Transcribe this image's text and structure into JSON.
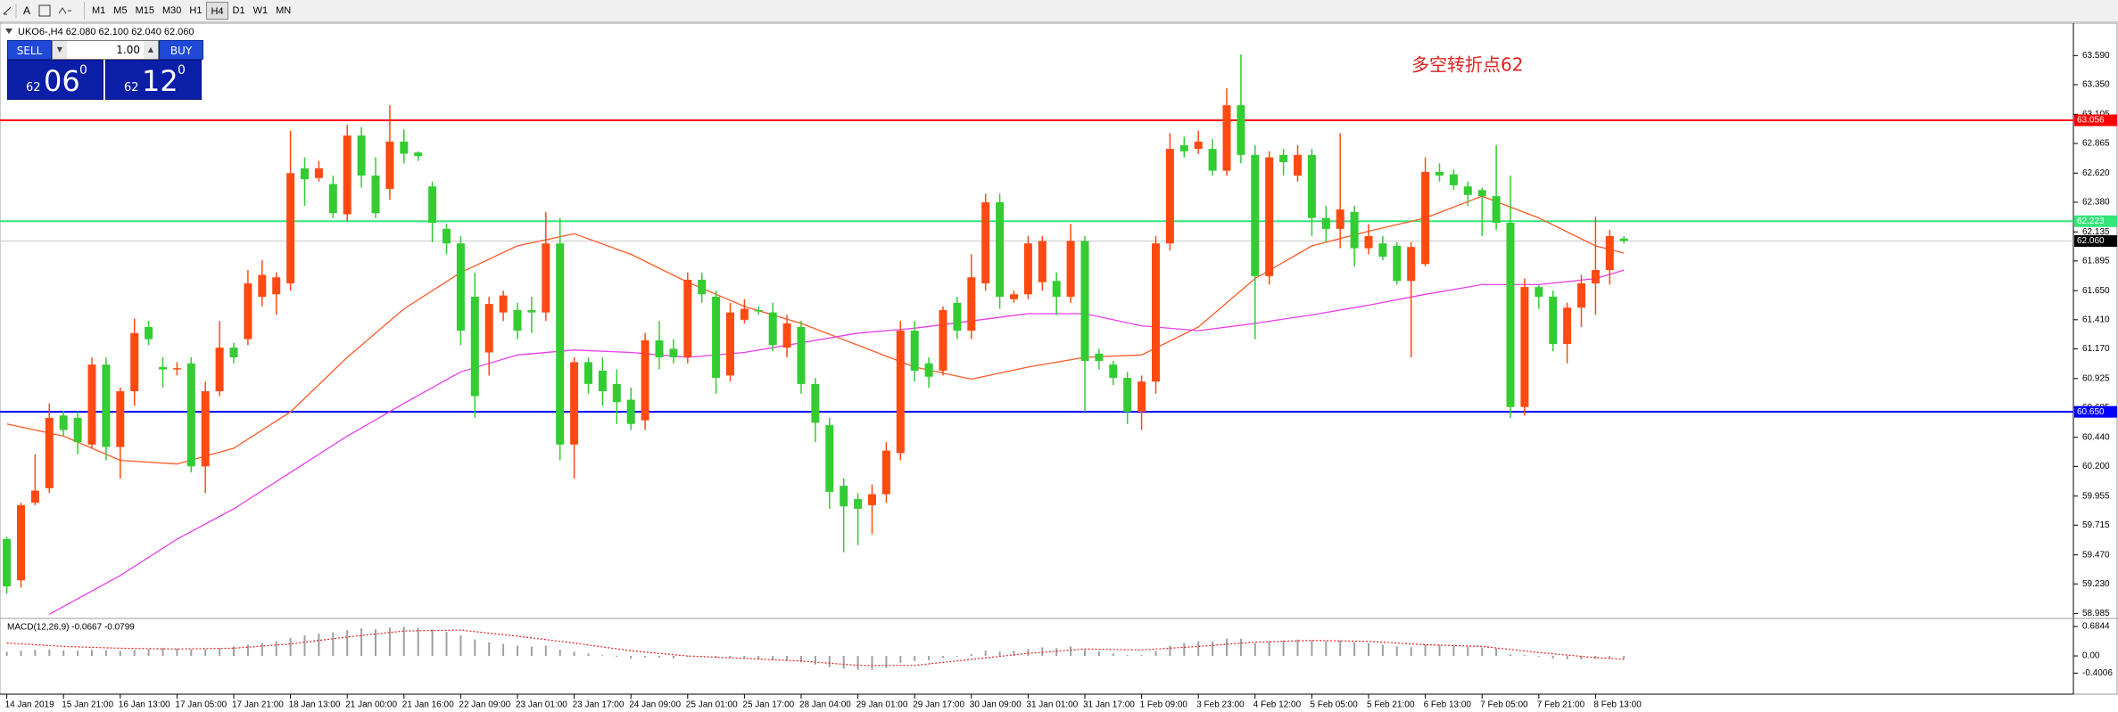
{
  "toolbar": {
    "timeframes": [
      "M1",
      "M5",
      "M15",
      "M30",
      "H1",
      "H4",
      "D1",
      "W1",
      "MN"
    ],
    "active": 5
  },
  "trade_panel": {
    "sell": "SELL",
    "buy": "BUY",
    "lot": "1.00",
    "sell_price": [
      "62",
      "06",
      "0"
    ],
    "buy_price": [
      "62",
      "12",
      "0"
    ]
  },
  "chart_data": [
    {
      "type": "candlestick",
      "title": "UKO6-,H4  62.080 62.100 62.040 62.060",
      "annotation": "多空转折点62",
      "up_color": "#ff4a12",
      "down_color": "#33cc33",
      "ylim": [
        58.96,
        63.85
      ],
      "yticks": [
        {
          "value": 63.59,
          "label": "63.590"
        },
        {
          "value": 63.35,
          "label": "63.350"
        },
        {
          "value": 63.105,
          "label": "63.105"
        },
        {
          "value": 62.865,
          "label": "62.865"
        },
        {
          "value": 62.62,
          "label": "62.620"
        },
        {
          "value": 62.38,
          "label": "62.380"
        },
        {
          "value": 62.135,
          "label": "62.135"
        },
        {
          "value": 61.895,
          "label": "61.895"
        },
        {
          "value": 61.65,
          "label": "61.650"
        },
        {
          "value": 61.41,
          "label": "61.410"
        },
        {
          "value": 61.17,
          "label": "61.170"
        },
        {
          "value": 60.925,
          "label": "60.925"
        },
        {
          "value": 60.685,
          "label": "60.685"
        },
        {
          "value": 60.44,
          "label": "60.440"
        },
        {
          "value": 60.2,
          "label": "60.200"
        },
        {
          "value": 59.955,
          "label": "59.955"
        },
        {
          "value": 59.715,
          "label": "59.715"
        },
        {
          "value": 59.47,
          "label": "59.470"
        },
        {
          "value": 59.23,
          "label": "59.230"
        },
        {
          "value": 58.985,
          "label": "58.985"
        }
      ],
      "levels": {
        "values": [
          63.056,
          62.223,
          60.65,
          62.06
        ],
        "value_labels": [
          "63.056",
          "62.223",
          "60.650",
          "62.060"
        ],
        "colors": [
          "#ff0000",
          "#33e67a",
          "#0000ff",
          "#c8c8c8"
        ],
        "label_colors": [
          "#ff0000",
          "#33e67a",
          "#0000ff",
          "#000000"
        ]
      },
      "categories": [
        "14 Jan 2019",
        null,
        null,
        null,
        "15 Jan 21:00",
        null,
        null,
        null,
        "16 Jan 13:00",
        null,
        null,
        null,
        "17 Jan 05:00",
        null,
        null,
        null,
        "17 Jan 21:00",
        null,
        null,
        null,
        "18 Jan 13:00",
        null,
        null,
        null,
        "21 Jan 00:00",
        null,
        null,
        null,
        "21 Jan 16:00",
        null,
        null,
        null,
        "22 Jan 09:00",
        null,
        null,
        null,
        "23 Jan 01:00",
        null,
        null,
        null,
        "23 Jan 17:00",
        null,
        null,
        null,
        "24 Jan 09:00",
        null,
        null,
        null,
        "25 Jan 01:00",
        null,
        null,
        null,
        "25 Jan 17:00",
        null,
        null,
        null,
        "28 Jan 04:00",
        null,
        null,
        null,
        "29 Jan 01:00",
        null,
        null,
        null,
        "29 Jan 17:00",
        null,
        null,
        null,
        "30 Jan 09:00",
        null,
        null,
        null,
        "31 Jan 01:00",
        null,
        null,
        null,
        "31 Jan 17:00",
        null,
        null,
        null,
        "1 Feb 09:00",
        null,
        null,
        null,
        "3 Feb 23:00",
        null,
        null,
        null,
        "4 Feb 12:00",
        null,
        null,
        null,
        "5 Feb 05:00",
        null,
        null,
        null,
        "5 Feb 21:00",
        null,
        null,
        null,
        "6 Feb 13:00",
        null,
        null,
        null,
        "7 Feb 05:00",
        null,
        null,
        null,
        "7 Feb 21:00",
        null,
        null,
        null,
        "8 Feb 13:00",
        null,
        null
      ],
      "open": [
        59.6,
        59.26,
        59.9,
        60.02,
        60.62,
        60.6,
        60.38,
        61.04,
        60.36,
        60.82,
        61.35,
        61.02,
        61.0,
        61.05,
        60.2,
        60.82,
        61.18,
        61.25,
        61.6,
        61.62,
        61.71,
        62.66,
        62.58,
        62.53,
        62.28,
        62.93,
        62.6,
        62.49,
        62.88,
        62.79,
        62.51,
        62.16,
        62.04,
        61.6,
        61.14,
        61.47,
        61.49,
        61.49,
        61.47,
        62.04,
        60.38,
        61.06,
        60.99,
        60.88,
        60.75,
        60.58,
        61.24,
        61.17,
        61.1,
        61.74,
        61.6,
        60.95,
        61.41,
        61.49,
        61.47,
        61.18,
        61.35,
        60.88,
        60.54,
        60.04,
        59.93,
        59.88,
        59.97,
        60.31,
        61.32,
        61.05,
        60.99,
        61.55,
        61.32,
        61.71,
        62.38,
        61.58,
        61.62,
        61.72,
        61.73,
        61.6,
        62.06,
        61.13,
        61.04,
        60.93,
        60.65,
        60.9,
        62.04,
        62.85,
        62.82,
        62.82,
        62.64,
        63.18,
        62.77,
        61.77,
        62.77,
        62.6,
        62.77,
        62.25,
        62.16,
        62.3,
        62.0,
        62.04,
        62.02,
        61.73,
        61.87,
        62.63,
        62.61,
        62.51,
        62.48,
        62.43,
        62.21,
        60.69,
        61.68,
        61.6,
        61.21,
        61.51,
        61.71,
        61.82,
        62.08
      ],
      "high": [
        59.62,
        59.9,
        60.3,
        60.72,
        60.66,
        60.65,
        61.1,
        61.1,
        60.85,
        61.42,
        61.4,
        61.1,
        61.06,
        61.1,
        60.9,
        61.4,
        61.22,
        61.82,
        61.9,
        61.8,
        62.97,
        62.75,
        62.72,
        62.6,
        63.02,
        63.0,
        62.75,
        63.18,
        62.98,
        62.8,
        62.55,
        62.2,
        62.1,
        61.8,
        61.6,
        61.65,
        61.55,
        61.6,
        62.3,
        62.25,
        61.1,
        61.1,
        61.1,
        61.0,
        60.85,
        61.3,
        61.4,
        61.25,
        61.8,
        61.8,
        61.65,
        61.55,
        61.58,
        61.52,
        61.55,
        61.45,
        61.4,
        60.93,
        60.6,
        60.1,
        59.98,
        60.05,
        60.4,
        61.4,
        61.4,
        61.1,
        61.52,
        61.6,
        61.95,
        62.45,
        62.45,
        61.65,
        62.1,
        62.1,
        61.8,
        62.2,
        62.1,
        61.17,
        61.07,
        60.98,
        60.95,
        62.1,
        62.95,
        62.92,
        62.97,
        62.9,
        63.32,
        63.6,
        62.85,
        62.8,
        62.82,
        62.85,
        62.82,
        62.35,
        62.95,
        62.35,
        62.2,
        62.1,
        62.05,
        62.05,
        62.75,
        62.7,
        62.65,
        62.55,
        62.5,
        62.85,
        62.6,
        61.75,
        61.7,
        61.65,
        61.55,
        61.78,
        62.26,
        62.15,
        62.1
      ],
      "low": [
        59.15,
        59.2,
        59.88,
        59.98,
        60.45,
        60.3,
        60.35,
        60.25,
        60.1,
        60.7,
        61.2,
        60.85,
        60.95,
        60.15,
        59.98,
        60.78,
        61.05,
        61.2,
        61.52,
        61.45,
        61.65,
        62.35,
        62.55,
        62.25,
        62.22,
        62.5,
        62.25,
        62.4,
        62.7,
        62.72,
        62.05,
        61.95,
        61.2,
        60.6,
        60.95,
        61.4,
        61.25,
        61.3,
        61.4,
        60.25,
        60.1,
        60.8,
        60.7,
        60.55,
        60.5,
        60.5,
        61.0,
        61.05,
        61.05,
        61.55,
        60.8,
        60.9,
        61.38,
        61.45,
        61.15,
        61.1,
        60.8,
        60.4,
        59.85,
        59.49,
        59.55,
        59.64,
        59.9,
        60.25,
        60.9,
        60.85,
        60.95,
        61.25,
        61.25,
        61.65,
        61.5,
        61.55,
        61.58,
        61.65,
        61.45,
        61.55,
        60.65,
        61.0,
        60.87,
        60.55,
        60.5,
        60.8,
        61.98,
        62.75,
        62.78,
        62.6,
        62.6,
        62.7,
        61.25,
        61.7,
        62.6,
        62.55,
        62.1,
        62.05,
        62.0,
        61.85,
        61.95,
        61.9,
        61.7,
        61.1,
        61.85,
        62.55,
        62.48,
        62.35,
        62.1,
        62.15,
        60.6,
        60.62,
        61.5,
        61.15,
        61.05,
        61.35,
        61.45,
        61.7,
        62.04
      ],
      "close": [
        59.21,
        59.88,
        60.0,
        60.6,
        60.5,
        60.4,
        61.04,
        60.36,
        60.82,
        61.3,
        61.25,
        61.0,
        61.01,
        60.2,
        60.82,
        61.18,
        61.1,
        61.71,
        61.78,
        61.76,
        62.62,
        62.57,
        62.66,
        62.29,
        62.93,
        62.6,
        62.29,
        62.88,
        62.78,
        62.76,
        62.21,
        62.04,
        61.32,
        60.78,
        61.54,
        61.61,
        61.32,
        61.47,
        62.04,
        60.38,
        61.06,
        60.88,
        60.82,
        60.73,
        60.55,
        61.24,
        61.1,
        61.1,
        61.74,
        61.62,
        60.93,
        61.47,
        61.5,
        61.48,
        61.2,
        61.38,
        60.88,
        60.56,
        59.99,
        59.87,
        59.85,
        59.97,
        60.33,
        61.32,
        60.99,
        60.94,
        61.49,
        61.32,
        61.76,
        62.38,
        61.6,
        61.62,
        62.04,
        62.06,
        61.6,
        62.06,
        61.07,
        61.07,
        60.93,
        60.65,
        60.9,
        62.04,
        62.82,
        62.8,
        62.88,
        62.64,
        63.18,
        62.77,
        61.77,
        62.75,
        62.71,
        62.77,
        62.25,
        62.16,
        62.32,
        62.0,
        62.1,
        61.93,
        61.73,
        62.01,
        62.63,
        62.6,
        62.52,
        62.44,
        62.43,
        62.21,
        60.69,
        61.68,
        61.6,
        61.21,
        61.51,
        61.71,
        61.82,
        62.1,
        62.06
      ],
      "overlays": [
        {
          "color": "#ff5a28",
          "x": [
            0,
            4,
            8,
            12,
            16,
            20,
            24,
            28,
            32,
            36,
            40,
            44,
            48,
            52,
            56,
            60,
            64,
            68,
            72,
            76,
            80,
            84,
            88,
            92,
            96,
            100,
            104,
            108,
            112,
            114
          ],
          "values": [
            60.55,
            60.45,
            60.25,
            60.22,
            60.35,
            60.65,
            61.1,
            61.5,
            61.8,
            62.02,
            62.12,
            61.95,
            61.72,
            61.52,
            61.38,
            61.2,
            61.02,
            60.92,
            61.02,
            61.1,
            61.12,
            61.35,
            61.75,
            62.02,
            62.14,
            62.25,
            62.43,
            62.25,
            62.02,
            61.96
          ]
        },
        {
          "color": "#e83ee8",
          "x": [
            3,
            8,
            12,
            16,
            20,
            24,
            28,
            32,
            36,
            40,
            44,
            48,
            52,
            56,
            60,
            64,
            68,
            72,
            76,
            80,
            84,
            88,
            92,
            96,
            100,
            104,
            108,
            112,
            114
          ],
          "values": [
            58.98,
            59.3,
            59.6,
            59.85,
            60.15,
            60.45,
            60.72,
            60.98,
            61.12,
            61.16,
            61.14,
            61.1,
            61.14,
            61.22,
            61.3,
            61.34,
            61.4,
            61.46,
            61.46,
            61.36,
            61.32,
            61.38,
            61.45,
            61.53,
            61.62,
            61.7,
            61.7,
            61.75,
            61.82
          ]
        }
      ]
    },
    {
      "type": "macd",
      "title": "MACD(12,26,9) -0.0667 -0.0799",
      "color": "#a0a0a0",
      "signal_color": "#e02020",
      "ylim": [
        -0.87,
        0.81
      ],
      "yticks": [
        0.6844,
        {
          "value": 0,
          "label": "0.00"
        },
        -0.4006
      ],
      "values": [
        0.1,
        0.12,
        0.14,
        0.15,
        0.13,
        0.12,
        0.14,
        0.13,
        0.12,
        0.14,
        0.16,
        0.18,
        0.17,
        0.15,
        0.16,
        0.18,
        0.22,
        0.26,
        0.3,
        0.34,
        0.42,
        0.48,
        0.52,
        0.55,
        0.6,
        0.64,
        0.62,
        0.66,
        0.68,
        0.66,
        0.62,
        0.56,
        0.48,
        0.38,
        0.32,
        0.28,
        0.24,
        0.22,
        0.24,
        0.14,
        0.1,
        0.06,
        0.02,
        -0.02,
        -0.06,
        -0.04,
        -0.04,
        -0.06,
        -0.02,
        0.0,
        -0.04,
        -0.04,
        -0.06,
        -0.08,
        -0.1,
        -0.1,
        -0.14,
        -0.2,
        -0.26,
        -0.3,
        -0.32,
        -0.32,
        -0.28,
        -0.16,
        -0.12,
        -0.1,
        -0.04,
        -0.02,
        0.04,
        0.12,
        0.1,
        0.12,
        0.16,
        0.2,
        0.18,
        0.22,
        0.14,
        0.1,
        0.06,
        0.02,
        0.02,
        0.12,
        0.24,
        0.3,
        0.34,
        0.34,
        0.4,
        0.4,
        0.3,
        0.34,
        0.36,
        0.38,
        0.36,
        0.34,
        0.36,
        0.32,
        0.3,
        0.26,
        0.22,
        0.2,
        0.26,
        0.26,
        0.24,
        0.22,
        0.2,
        0.18,
        0.04,
        0.02,
        -0.02,
        -0.06,
        -0.08,
        -0.08,
        -0.07,
        -0.06,
        -0.0667
      ],
      "signal": {
        "x": [
          0,
          4,
          8,
          12,
          16,
          20,
          24,
          28,
          32,
          36,
          40,
          44,
          48,
          52,
          56,
          60,
          64,
          68,
          72,
          76,
          80,
          84,
          88,
          92,
          96,
          100,
          104,
          108,
          112,
          114
        ],
        "values": [
          0.3,
          0.22,
          0.18,
          0.16,
          0.18,
          0.28,
          0.44,
          0.58,
          0.6,
          0.46,
          0.3,
          0.12,
          0.0,
          -0.06,
          -0.12,
          -0.22,
          -0.22,
          -0.08,
          0.06,
          0.16,
          0.14,
          0.22,
          0.32,
          0.36,
          0.34,
          0.26,
          0.22,
          0.08,
          -0.04,
          -0.0799
        ]
      }
    }
  ]
}
